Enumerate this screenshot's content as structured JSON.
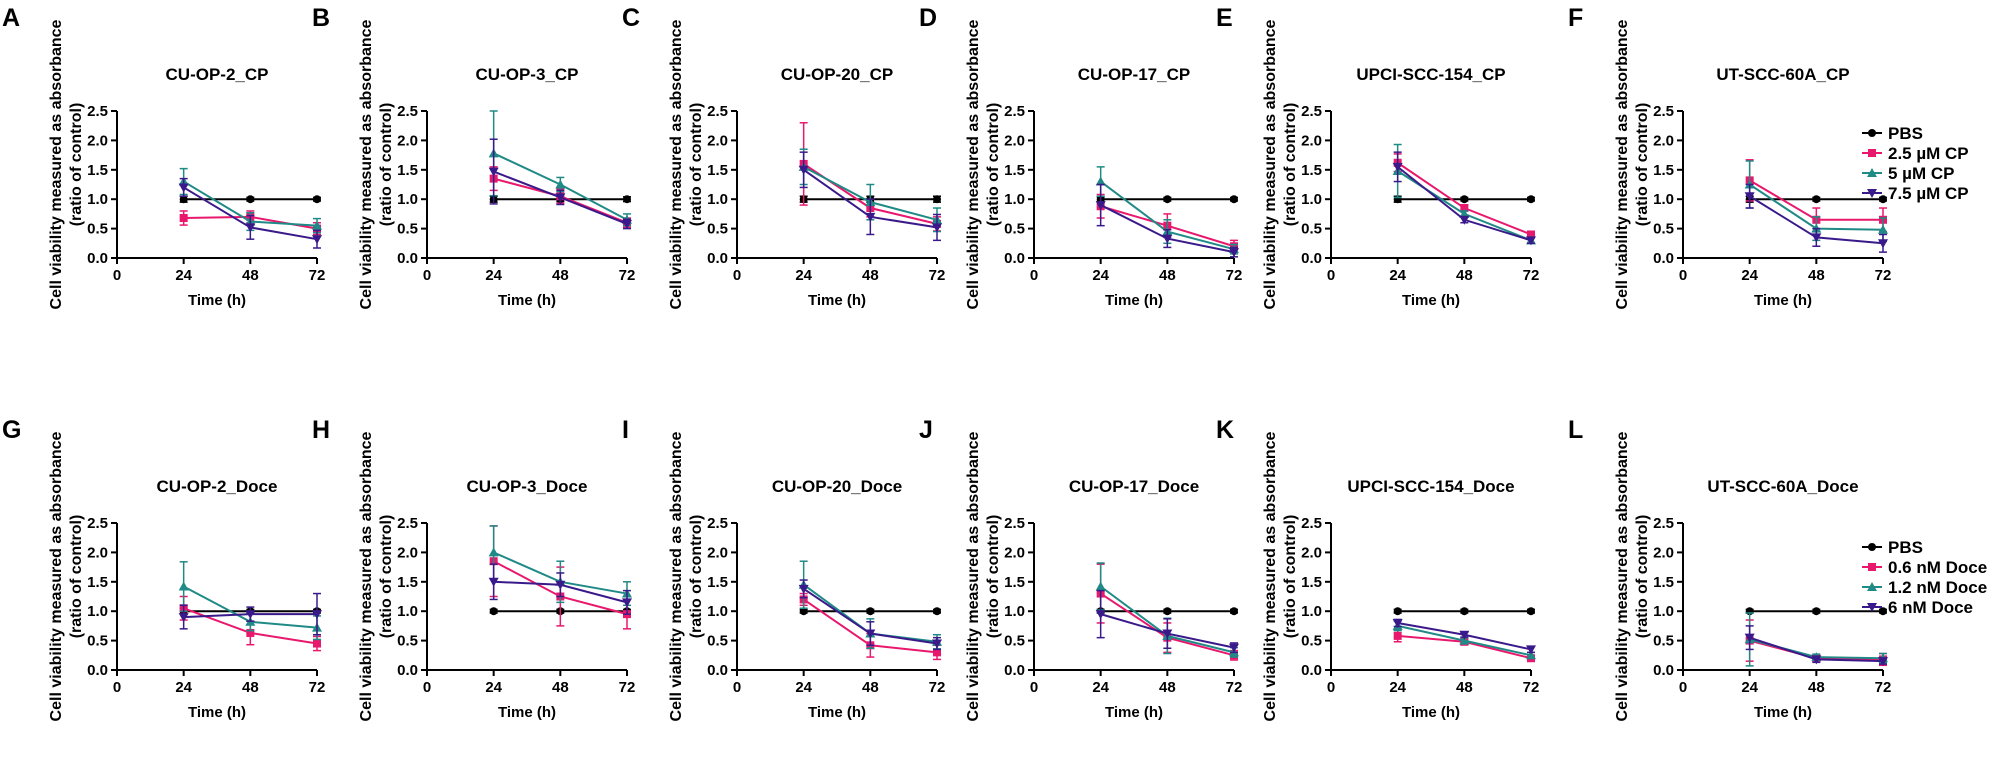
{
  "colors": {
    "pbs": "#000000",
    "low": "#e8186d",
    "mid": "#1f8a86",
    "high": "#3a1a8a"
  },
  "legends": [
    {
      "entries": [
        "PBS",
        "2.5 µM CP",
        "5 µM CP",
        "7.5 µM CP"
      ]
    },
    {
      "entries": [
        "PBS",
        "0.6 nM Doce",
        "1.2 nM Doce",
        "6 nM Doce"
      ]
    }
  ],
  "chart_data": [
    {
      "panel": "A",
      "type": "line",
      "title": "CU-OP-2_CP",
      "xlabel": "Time (h)",
      "ylabel_line1": "Cell viability measured as absorbance",
      "ylabel_line2": "(ratio of control)",
      "x": [
        24,
        48,
        72
      ],
      "xlim": [
        0,
        72
      ],
      "ylim": [
        0,
        2.5
      ],
      "xticks": [
        "0",
        "24",
        "48",
        "72"
      ],
      "yticks": [
        "0.0",
        "0.5",
        "1.0",
        "1.5",
        "2.0",
        "2.5"
      ],
      "series": [
        {
          "name": "PBS",
          "values": [
            1.0,
            1.0,
            1.0
          ],
          "err": [
            0.05,
            0.03,
            0.03
          ]
        },
        {
          "name": "2.5 µM CP",
          "values": [
            0.68,
            0.7,
            0.5
          ],
          "err": [
            0.12,
            0.1,
            0.1
          ]
        },
        {
          "name": "5 µM CP",
          "values": [
            1.3,
            0.62,
            0.55
          ],
          "err": [
            0.22,
            0.15,
            0.12
          ]
        },
        {
          "name": "7.5 µM CP",
          "values": [
            1.2,
            0.52,
            0.32
          ],
          "err": [
            0.15,
            0.2,
            0.15
          ]
        }
      ]
    },
    {
      "panel": "B",
      "type": "line",
      "title": "CU-OP-3_CP",
      "xlabel": "Time (h)",
      "ylabel_line1": "Cell viability measured as absorbance",
      "ylabel_line2": "(ratio of control)",
      "x": [
        24,
        48,
        72
      ],
      "xlim": [
        0,
        72
      ],
      "ylim": [
        0,
        2.5
      ],
      "xticks": [
        "0",
        "24",
        "48",
        "72"
      ],
      "yticks": [
        "0.0",
        "0.5",
        "1.0",
        "1.5",
        "2.0",
        "2.5"
      ],
      "series": [
        {
          "name": "PBS",
          "values": [
            1.0,
            1.0,
            1.0
          ],
          "err": [
            0.05,
            0.04,
            0.04
          ]
        },
        {
          "name": "2.5 µM CP",
          "values": [
            1.35,
            1.05,
            0.6
          ],
          "err": [
            0.2,
            0.12,
            0.08
          ]
        },
        {
          "name": "5 µM CP",
          "values": [
            1.78,
            1.25,
            0.65
          ],
          "err": [
            0.72,
            0.12,
            0.1
          ]
        },
        {
          "name": "7.5 µM CP",
          "values": [
            1.47,
            1.03,
            0.58
          ],
          "err": [
            0.55,
            0.12,
            0.08
          ]
        }
      ]
    },
    {
      "panel": "C",
      "type": "line",
      "title": "CU-OP-20_CP",
      "xlabel": "Time (h)",
      "ylabel_line1": "Cell viability measured as absorbance",
      "ylabel_line2": "(ratio of control)",
      "x": [
        24,
        48,
        72
      ],
      "xlim": [
        0,
        72
      ],
      "ylim": [
        0,
        2.5
      ],
      "xticks": [
        "0",
        "24",
        "48",
        "72"
      ],
      "yticks": [
        "0.0",
        "0.5",
        "1.0",
        "1.5",
        "2.0",
        "2.5"
      ],
      "series": [
        {
          "name": "PBS",
          "values": [
            1.0,
            1.0,
            1.0
          ],
          "err": [
            0.05,
            0.05,
            0.05
          ]
        },
        {
          "name": "2.5 µM CP",
          "values": [
            1.6,
            0.85,
            0.58
          ],
          "err": [
            0.7,
            0.15,
            0.12
          ]
        },
        {
          "name": "5 µM CP",
          "values": [
            1.55,
            0.95,
            0.65
          ],
          "err": [
            0.3,
            0.3,
            0.2
          ]
        },
        {
          "name": "7.5 µM CP",
          "values": [
            1.5,
            0.7,
            0.52
          ],
          "err": [
            0.3,
            0.3,
            0.22
          ]
        }
      ]
    },
    {
      "panel": "D",
      "type": "line",
      "title": "CU-OP-17_CP",
      "xlabel": "Time (h)",
      "ylabel_line1": "Cell viability measured as absorbance",
      "ylabel_line2": "(ratio of control)",
      "x": [
        24,
        48,
        72
      ],
      "xlim": [
        0,
        72
      ],
      "ylim": [
        0,
        2.5
      ],
      "xticks": [
        "0",
        "24",
        "48",
        "72"
      ],
      "yticks": [
        "0.0",
        "0.5",
        "1.0",
        "1.5",
        "2.0",
        "2.5"
      ],
      "series": [
        {
          "name": "PBS",
          "values": [
            1.0,
            1.0,
            1.0
          ],
          "err": [
            0.04,
            0.03,
            0.03
          ]
        },
        {
          "name": "2.5 µM CP",
          "values": [
            0.88,
            0.55,
            0.2
          ],
          "err": [
            0.2,
            0.2,
            0.1
          ]
        },
        {
          "name": "5 µM CP",
          "values": [
            1.3,
            0.45,
            0.15
          ],
          "err": [
            0.25,
            0.2,
            0.08
          ]
        },
        {
          "name": "7.5 µM CP",
          "values": [
            0.9,
            0.33,
            0.1
          ],
          "err": [
            0.35,
            0.15,
            0.08
          ]
        }
      ]
    },
    {
      "panel": "E",
      "type": "line",
      "title": "UPCI-SCC-154_CP",
      "xlabel": "Time (h)",
      "ylabel_line1": "Cell viability measured as absorbance",
      "ylabel_line2": "(ratio of control)",
      "x": [
        24,
        48,
        72
      ],
      "xlim": [
        0,
        72
      ],
      "ylim": [
        0,
        2.5
      ],
      "xticks": [
        "0",
        "24",
        "48",
        "72"
      ],
      "yticks": [
        "0.0",
        "0.5",
        "1.0",
        "1.5",
        "2.0",
        "2.5"
      ],
      "series": [
        {
          "name": "PBS",
          "values": [
            1.0,
            1.0,
            1.0
          ],
          "err": [
            0.05,
            0.03,
            0.03
          ]
        },
        {
          "name": "2.5 µM CP",
          "values": [
            1.62,
            0.85,
            0.4
          ],
          "err": [
            0.15,
            0.05,
            0.05
          ]
        },
        {
          "name": "5 µM CP",
          "values": [
            1.48,
            0.75,
            0.3
          ],
          "err": [
            0.45,
            0.05,
            0.05
          ]
        },
        {
          "name": "7.5 µM CP",
          "values": [
            1.55,
            0.65,
            0.3
          ],
          "err": [
            0.25,
            0.05,
            0.05
          ]
        }
      ]
    },
    {
      "panel": "F",
      "type": "line",
      "title": "UT-SCC-60A_CP",
      "xlabel": "Time (h)",
      "ylabel_line1": "Cell viability measured as absorbance",
      "ylabel_line2": "(ratio of control)",
      "x": [
        24,
        48,
        72
      ],
      "xlim": [
        0,
        72
      ],
      "ylim": [
        0,
        2.5
      ],
      "xticks": [
        "0",
        "24",
        "48",
        "72"
      ],
      "yticks": [
        "0.0",
        "0.5",
        "1.0",
        "1.5",
        "2.0",
        "2.5"
      ],
      "series": [
        {
          "name": "PBS",
          "values": [
            1.0,
            1.0,
            1.0
          ],
          "err": [
            0.05,
            0.03,
            0.03
          ]
        },
        {
          "name": "2.5 µM CP",
          "values": [
            1.32,
            0.65,
            0.65
          ],
          "err": [
            0.35,
            0.2,
            0.2
          ]
        },
        {
          "name": "5 µM CP",
          "values": [
            1.25,
            0.5,
            0.48
          ],
          "err": [
            0.4,
            0.2,
            0.2
          ]
        },
        {
          "name": "7.5 µM CP",
          "values": [
            1.05,
            0.35,
            0.25
          ],
          "err": [
            0.2,
            0.15,
            0.15
          ]
        }
      ]
    },
    {
      "panel": "G",
      "type": "line",
      "title": "CU-OP-2_Doce",
      "xlabel": "Time (h)",
      "ylabel_line1": "Cell viability measured as absorbance",
      "ylabel_line2": "(ratio of control)",
      "x": [
        24,
        48,
        72
      ],
      "xlim": [
        0,
        72
      ],
      "ylim": [
        0,
        2.5
      ],
      "xticks": [
        "0",
        "24",
        "48",
        "72"
      ],
      "yticks": [
        "0.0",
        "0.5",
        "1.0",
        "1.5",
        "2.0",
        "2.5"
      ],
      "series": [
        {
          "name": "PBS",
          "values": [
            1.0,
            1.0,
            1.0
          ],
          "err": [
            0.05,
            0.03,
            0.03
          ]
        },
        {
          "name": "0.6 nM Doce",
          "values": [
            1.05,
            0.63,
            0.45
          ],
          "err": [
            0.2,
            0.2,
            0.12
          ]
        },
        {
          "name": "1.2 nM Doce",
          "values": [
            1.42,
            0.82,
            0.72
          ],
          "err": [
            0.42,
            0.15,
            0.2
          ]
        },
        {
          "name": "6 nM Doce",
          "values": [
            0.9,
            0.95,
            0.95
          ],
          "err": [
            0.2,
            0.12,
            0.35
          ]
        }
      ]
    },
    {
      "panel": "H",
      "type": "line",
      "title": "CU-OP-3_Doce",
      "xlabel": "Time (h)",
      "ylabel_line1": "Cell viability measured as absorbance",
      "ylabel_line2": "(ratio of control)",
      "x": [
        24,
        48,
        72
      ],
      "xlim": [
        0,
        72
      ],
      "ylim": [
        0,
        2.5
      ],
      "xticks": [
        "0",
        "24",
        "48",
        "72"
      ],
      "yticks": [
        "0.0",
        "0.5",
        "1.0",
        "1.5",
        "2.0",
        "2.5"
      ],
      "series": [
        {
          "name": "PBS",
          "values": [
            1.0,
            1.0,
            1.0
          ],
          "err": [
            0.03,
            0.03,
            0.03
          ]
        },
        {
          "name": "0.6 nM Doce",
          "values": [
            1.85,
            1.25,
            0.95
          ],
          "err": [
            0.6,
            0.5,
            0.25
          ]
        },
        {
          "name": "1.2 nM Doce",
          "values": [
            2.0,
            1.5,
            1.3
          ],
          "err": [
            0.45,
            0.35,
            0.2
          ]
        },
        {
          "name": "6 nM Doce",
          "values": [
            1.5,
            1.45,
            1.15
          ],
          "err": [
            0.3,
            0.2,
            0.2
          ]
        }
      ]
    },
    {
      "panel": "I",
      "type": "line",
      "title": "CU-OP-20_Doce",
      "xlabel": "Time (h)",
      "ylabel_line1": "Cell viability measured as absorbance",
      "ylabel_line2": "(ratio of control)",
      "x": [
        24,
        48,
        72
      ],
      "xlim": [
        0,
        72
      ],
      "ylim": [
        0,
        2.5
      ],
      "xticks": [
        "0",
        "24",
        "48",
        "72"
      ],
      "yticks": [
        "0.0",
        "0.5",
        "1.0",
        "1.5",
        "2.0",
        "2.5"
      ],
      "series": [
        {
          "name": "PBS",
          "values": [
            1.0,
            1.0,
            1.0
          ],
          "err": [
            0.03,
            0.03,
            0.03
          ]
        },
        {
          "name": "0.6 nM Doce",
          "values": [
            1.2,
            0.42,
            0.3
          ],
          "err": [
            0.1,
            0.2,
            0.12
          ]
        },
        {
          "name": "1.2 nM Doce",
          "values": [
            1.45,
            0.62,
            0.48
          ],
          "err": [
            0.4,
            0.25,
            0.12
          ]
        },
        {
          "name": "6 nM Doce",
          "values": [
            1.38,
            0.62,
            0.45
          ],
          "err": [
            0.15,
            0.2,
            0.1
          ]
        }
      ]
    },
    {
      "panel": "J",
      "type": "line",
      "title": "CU-OP-17_Doce",
      "xlabel": "Time (h)",
      "ylabel_line1": "Cell viability measured as absorbance",
      "ylabel_line2": "(ratio of control)",
      "x": [
        24,
        48,
        72
      ],
      "xlim": [
        0,
        72
      ],
      "ylim": [
        0,
        2.5
      ],
      "xticks": [
        "0",
        "24",
        "48",
        "72"
      ],
      "yticks": [
        "0.0",
        "0.5",
        "1.0",
        "1.5",
        "2.0",
        "2.5"
      ],
      "series": [
        {
          "name": "PBS",
          "values": [
            1.0,
            1.0,
            1.0
          ],
          "err": [
            0.03,
            0.03,
            0.03
          ]
        },
        {
          "name": "0.6 nM Doce",
          "values": [
            1.3,
            0.55,
            0.25
          ],
          "err": [
            0.5,
            0.25,
            0.08
          ]
        },
        {
          "name": "1.2 nM Doce",
          "values": [
            1.42,
            0.58,
            0.3
          ],
          "err": [
            0.4,
            0.3,
            0.08
          ]
        },
        {
          "name": "6 nM Doce",
          "values": [
            0.95,
            0.62,
            0.38
          ],
          "err": [
            0.4,
            0.25,
            0.08
          ]
        }
      ]
    },
    {
      "panel": "K",
      "type": "line",
      "title": "UPCI-SCC-154_Doce",
      "xlabel": "Time (h)",
      "ylabel_line1": "Cell viability measured as absorbance",
      "ylabel_line2": "(ratio of control)",
      "x": [
        24,
        48,
        72
      ],
      "xlim": [
        0,
        72
      ],
      "ylim": [
        0,
        2.5
      ],
      "xticks": [
        "0",
        "24",
        "48",
        "72"
      ],
      "yticks": [
        "0.0",
        "0.5",
        "1.0",
        "1.5",
        "2.0",
        "2.5"
      ],
      "series": [
        {
          "name": "PBS",
          "values": [
            1.0,
            1.0,
            1.0
          ],
          "err": [
            0.03,
            0.03,
            0.03
          ]
        },
        {
          "name": "0.6 nM Doce",
          "values": [
            0.58,
            0.48,
            0.2
          ],
          "err": [
            0.1,
            0.05,
            0.05
          ]
        },
        {
          "name": "1.2 nM Doce",
          "values": [
            0.75,
            0.5,
            0.25
          ],
          "err": [
            0.08,
            0.05,
            0.05
          ]
        },
        {
          "name": "6 nM Doce",
          "values": [
            0.8,
            0.6,
            0.35
          ],
          "err": [
            0.06,
            0.04,
            0.05
          ]
        }
      ]
    },
    {
      "panel": "L",
      "type": "line",
      "title": "UT-SCC-60A_Doce",
      "xlabel": "Time (h)",
      "ylabel_line1": "Cell viability measured as absorbance",
      "ylabel_line2": "(ratio of control)",
      "x": [
        24,
        48,
        72
      ],
      "xlim": [
        0,
        72
      ],
      "ylim": [
        0,
        2.5
      ],
      "xticks": [
        "0",
        "24",
        "48",
        "72"
      ],
      "yticks": [
        "0.0",
        "0.5",
        "1.0",
        "1.5",
        "2.0",
        "2.5"
      ],
      "series": [
        {
          "name": "PBS",
          "values": [
            1.0,
            1.0,
            1.0
          ],
          "err": [
            0.03,
            0.03,
            0.03
          ]
        },
        {
          "name": "0.6 nM Doce",
          "values": [
            0.5,
            0.2,
            0.18
          ],
          "err": [
            0.35,
            0.05,
            0.1
          ]
        },
        {
          "name": "1.2 nM Doce",
          "values": [
            0.52,
            0.22,
            0.2
          ],
          "err": [
            0.45,
            0.05,
            0.08
          ]
        },
        {
          "name": "6 nM Doce",
          "values": [
            0.55,
            0.18,
            0.15
          ],
          "err": [
            0.2,
            0.05,
            0.05
          ]
        }
      ]
    }
  ]
}
